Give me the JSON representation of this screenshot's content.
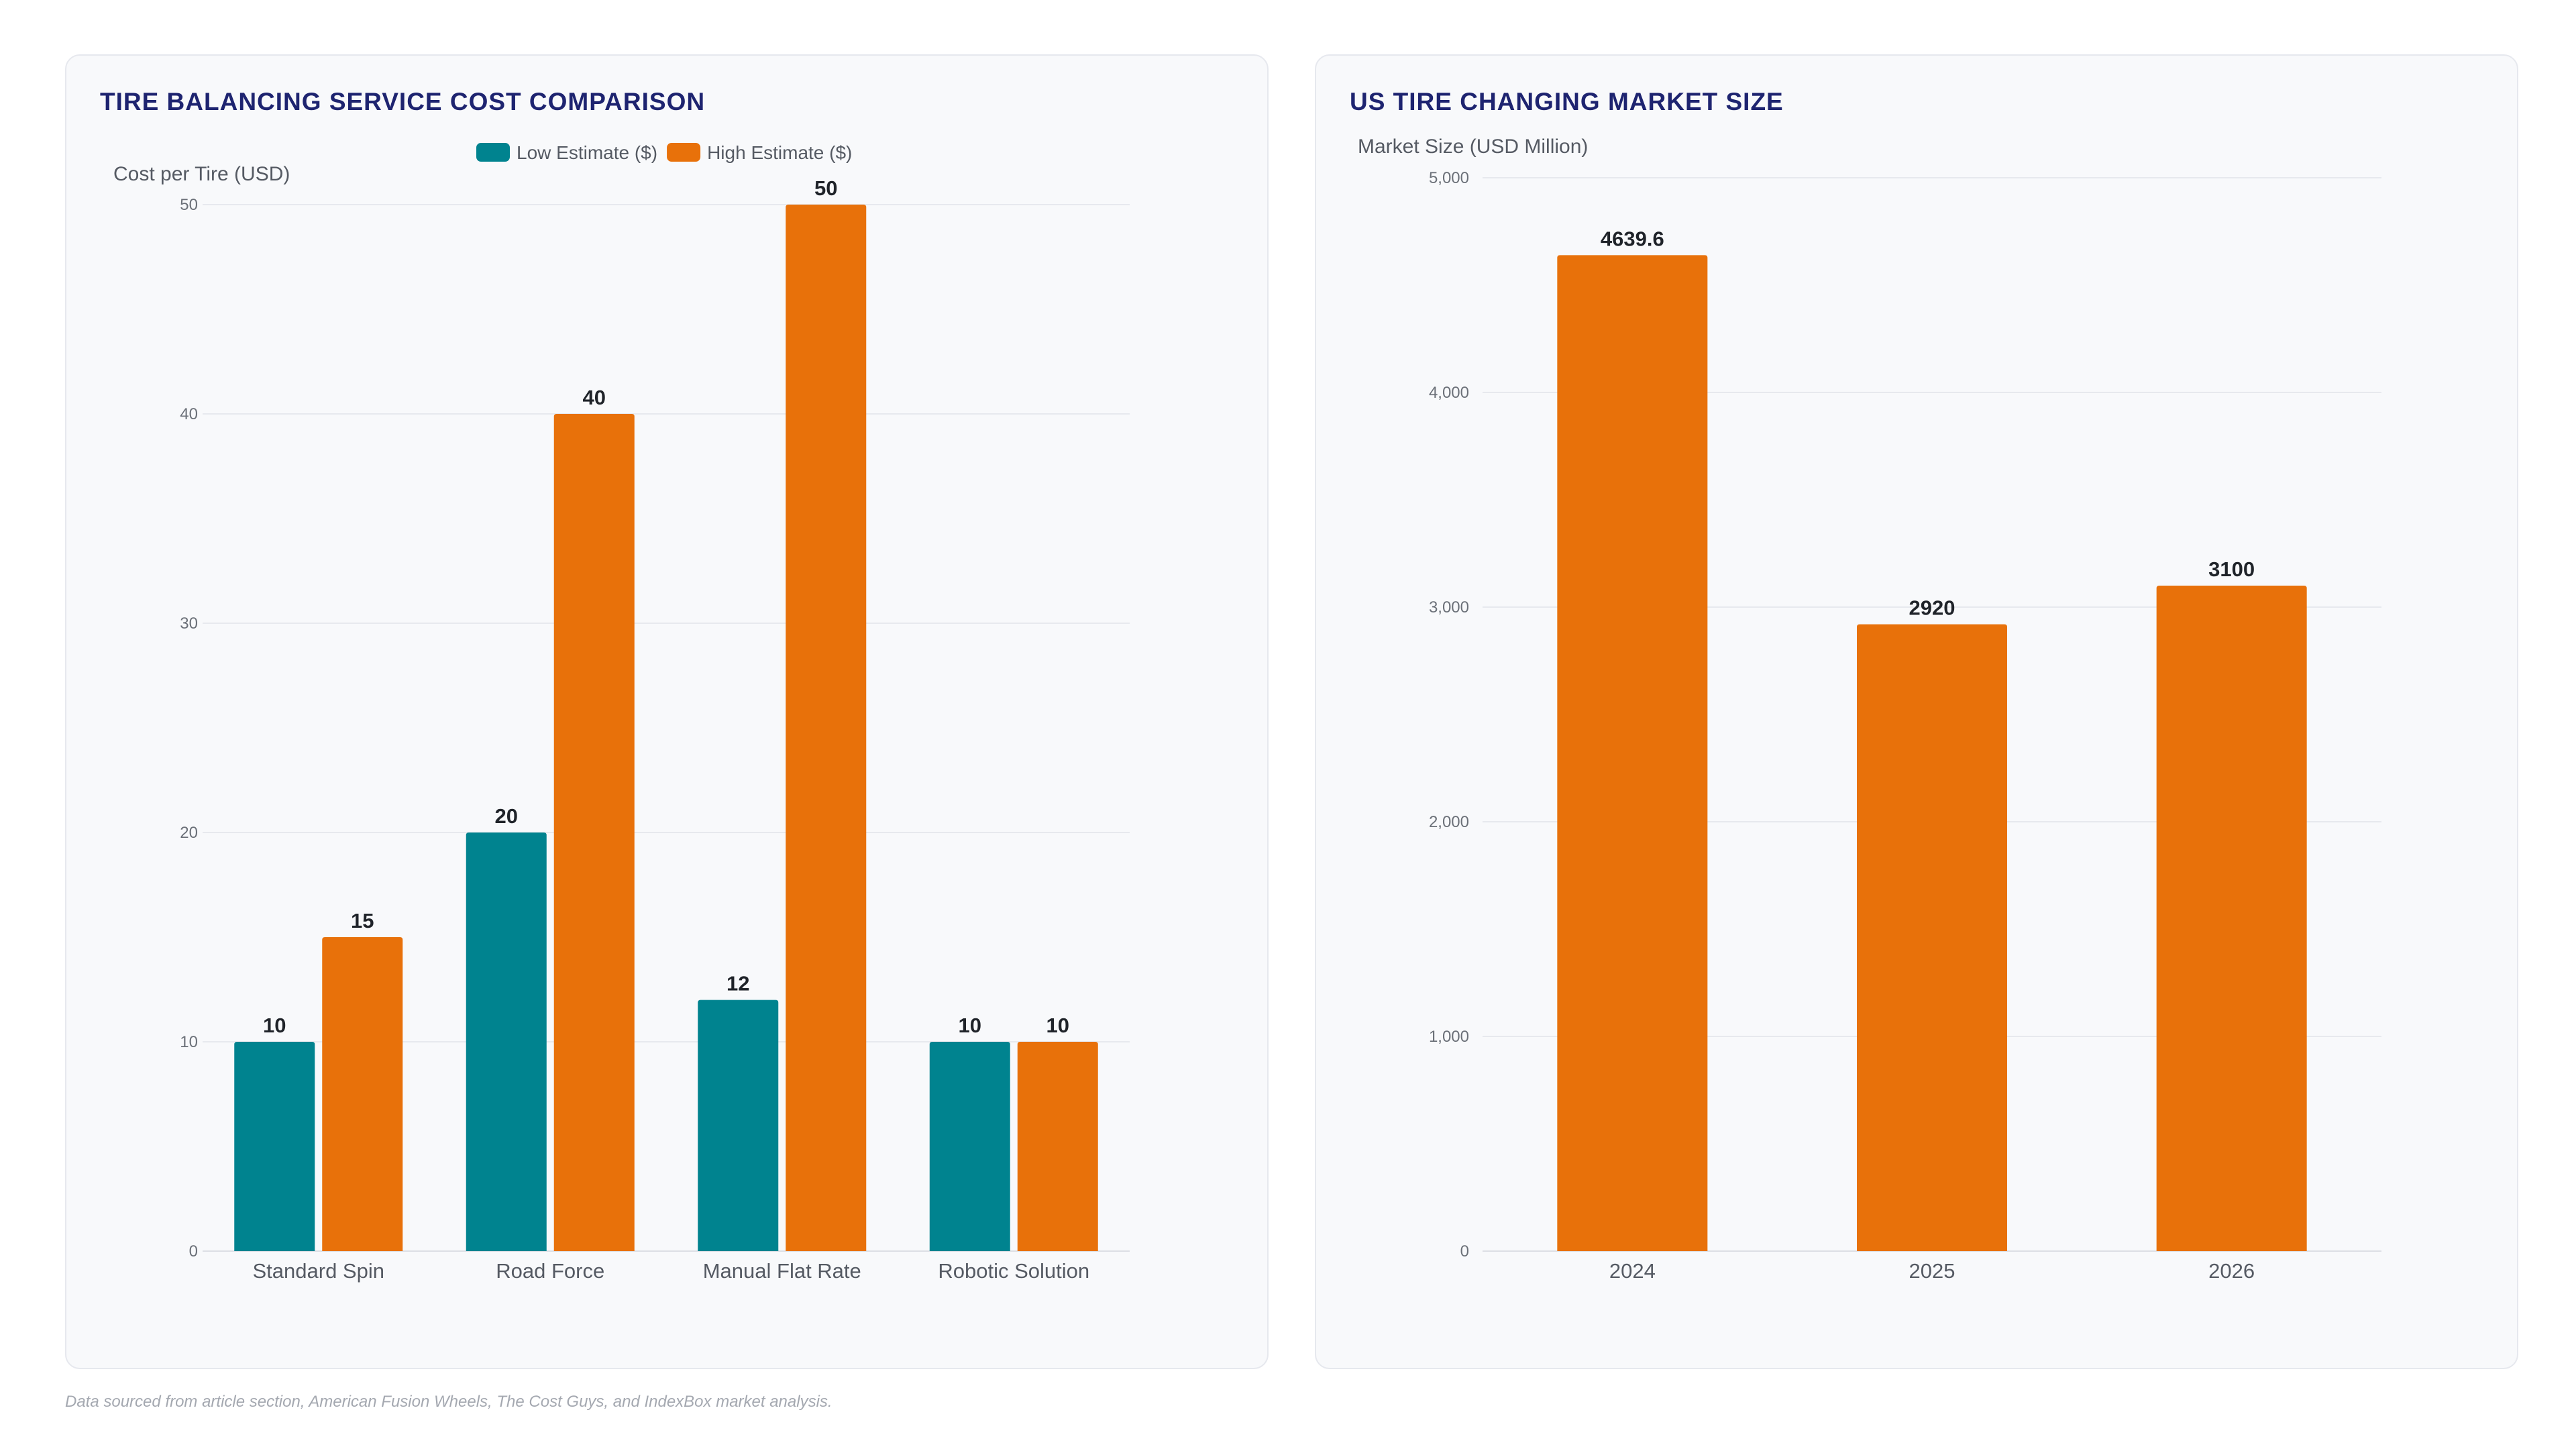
{
  "colors": {
    "teal": "#00838f",
    "orange": "#e8710a",
    "title": "#1e2470"
  },
  "footnote": "Data sourced from article section, American Fusion Wheels, The Cost Guys, and IndexBox market analysis.",
  "chart_data": [
    {
      "type": "bar",
      "title": "TIRE BALANCING SERVICE COST COMPARISON",
      "ylabel": "Cost per Tire (USD)",
      "xlabel": "",
      "categories": [
        "Standard Spin",
        "Road Force",
        "Manual Flat Rate",
        "Robotic Solution"
      ],
      "series": [
        {
          "name": "Low Estimate ($)",
          "values": [
            10,
            20,
            12,
            10
          ],
          "color": "#00838f"
        },
        {
          "name": "High Estimate ($)",
          "values": [
            15,
            40,
            50,
            10
          ],
          "color": "#e8710a"
        }
      ],
      "ylim": [
        0,
        50
      ],
      "yticks": [
        "0",
        "10",
        "20",
        "30",
        "40",
        "50"
      ],
      "data_labels": [
        [
          "10",
          "20",
          "12",
          "10"
        ],
        [
          "15",
          "40",
          "50",
          "10"
        ]
      ],
      "legend": "top-center",
      "grid": true
    },
    {
      "type": "bar",
      "title": "US TIRE CHANGING MARKET SIZE",
      "ylabel": "Market Size (USD Million)",
      "xlabel": "",
      "categories": [
        "2024",
        "2025",
        "2026"
      ],
      "series": [
        {
          "values": [
            4639.6,
            2920,
            3100
          ],
          "color": "#e8710a"
        }
      ],
      "ylim": [
        0,
        5000
      ],
      "yticks": [
        "0",
        "1,000",
        "2,000",
        "3,000",
        "4,000",
        "5,000"
      ],
      "data_labels": [
        [
          "4639.6",
          "2920",
          "3100"
        ]
      ],
      "legend": "none",
      "grid": true
    }
  ]
}
